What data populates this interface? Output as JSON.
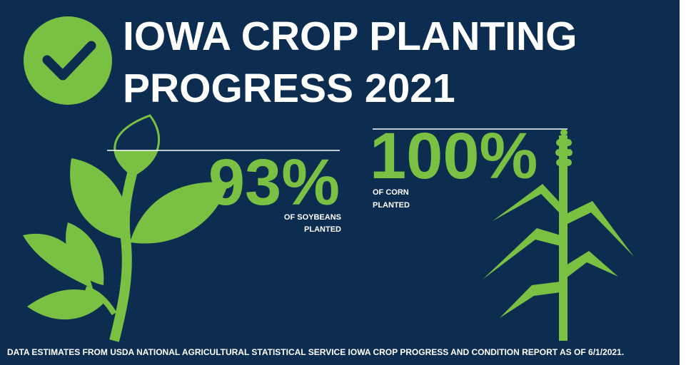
{
  "header": {
    "title_line1": "IOWA CROP PLANTING",
    "title_line2": "PROGRESS 2021"
  },
  "soybeans": {
    "percent": "93%",
    "label_line1": "OF SOYBEANS",
    "label_line2": "PLANTED"
  },
  "corn": {
    "percent": "100%",
    "label_line1": "OF CORN",
    "label_line2": "PLANTED"
  },
  "footer": "DATA ESTIMATES FROM USDA NATIONAL AGRICULTURAL STATISTICAL SERVICE IOWA CROP PROGRESS AND CONDITION REPORT AS OF 6/1/2021."
}
